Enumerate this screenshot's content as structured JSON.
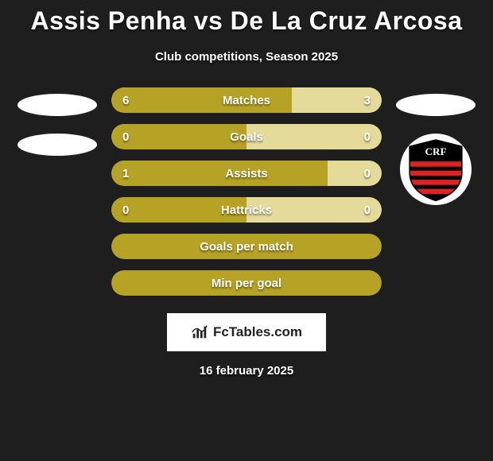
{
  "title": "Assis Penha vs De La Cruz Arcosa",
  "subtitle": "Club competitions, Season 2025",
  "date_text": "16 february 2025",
  "watermark_text": "FcTables.com",
  "colors": {
    "bar_primary": "#b6a326",
    "bar_secondary": "#e4db9b",
    "text": "#ffffff",
    "background": "#1e1e1e"
  },
  "rows": [
    {
      "label": "Matches",
      "left": "6",
      "right": "3",
      "left_pct": 66.7,
      "right_pct": 33.3,
      "show_values": true
    },
    {
      "label": "Goals",
      "left": "0",
      "right": "0",
      "left_pct": 50,
      "right_pct": 50,
      "show_values": true
    },
    {
      "label": "Assists",
      "left": "1",
      "right": "0",
      "left_pct": 80,
      "right_pct": 20,
      "show_values": true
    },
    {
      "label": "Hattricks",
      "left": "0",
      "right": "0",
      "left_pct": 50,
      "right_pct": 50,
      "show_values": true
    },
    {
      "label": "Goals per match",
      "left": "",
      "right": "",
      "left_pct": 100,
      "right_pct": 0,
      "show_values": false
    },
    {
      "label": "Min per goal",
      "left": "",
      "right": "",
      "left_pct": 100,
      "right_pct": 0,
      "show_values": false
    }
  ],
  "avatars": {
    "left_count": 2,
    "right_has_club_badge": true
  }
}
